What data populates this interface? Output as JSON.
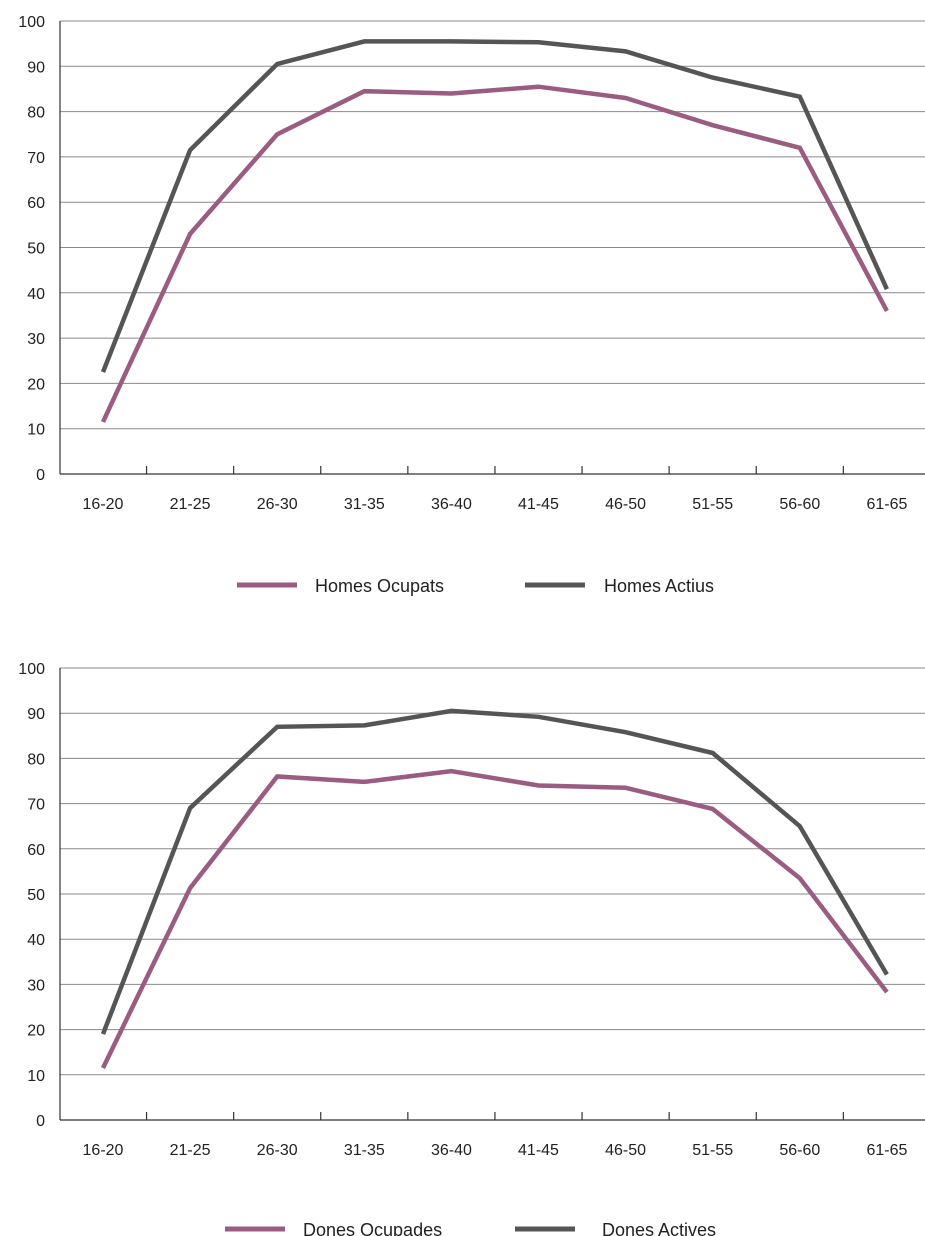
{
  "chart_data": [
    {
      "type": "line",
      "title": "",
      "xlabel": "",
      "ylabel": "",
      "ylim": [
        0,
        100
      ],
      "yticks": [
        0,
        10,
        20,
        30,
        40,
        50,
        60,
        70,
        80,
        90,
        100
      ],
      "grid": true,
      "legend_position": "bottom",
      "categories": [
        "16-20",
        "21-25",
        "26-30",
        "31-35",
        "36-40",
        "41-45",
        "46-50",
        "51-55",
        "56-60",
        "61-65"
      ],
      "series": [
        {
          "name": "Homes Ocupats",
          "color": "#9a5c80",
          "values": [
            11.5,
            53,
            75,
            84.5,
            84,
            85.5,
            83,
            77,
            72,
            36
          ]
        },
        {
          "name": "Homes Actius",
          "color": "#555555",
          "values": [
            22.5,
            71.5,
            90.5,
            95.5,
            95.5,
            95.3,
            93.3,
            87.5,
            83.3,
            40.8
          ]
        }
      ]
    },
    {
      "type": "line",
      "title": "",
      "xlabel": "",
      "ylabel": "",
      "ylim": [
        0,
        100
      ],
      "yticks": [
        0,
        10,
        20,
        30,
        40,
        50,
        60,
        70,
        80,
        90,
        100
      ],
      "grid": true,
      "legend_position": "bottom",
      "categories": [
        "16-20",
        "21-25",
        "26-30",
        "31-35",
        "36-40",
        "41-45",
        "46-50",
        "51-55",
        "56-60",
        "61-65"
      ],
      "series": [
        {
          "name": "Dones Ocupades",
          "color": "#9a5c80",
          "values": [
            11.5,
            51.3,
            76,
            74.8,
            77.2,
            74,
            73.5,
            68.8,
            53.5,
            28.3
          ]
        },
        {
          "name": "Dones Actives",
          "color": "#555555",
          "values": [
            19,
            69,
            87,
            87.3,
            90.5,
            89.2,
            85.8,
            81.2,
            65,
            32.2
          ]
        }
      ]
    }
  ]
}
